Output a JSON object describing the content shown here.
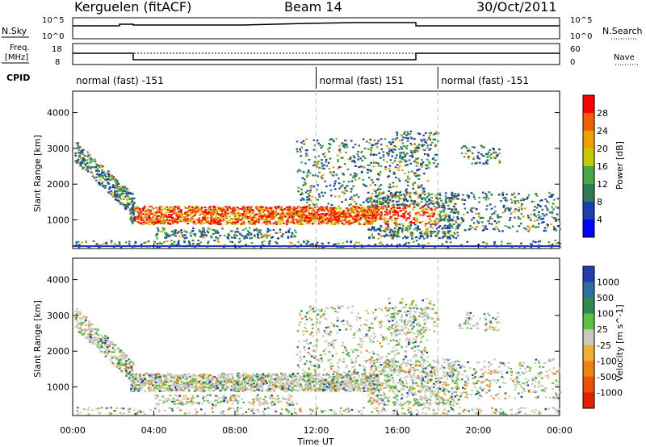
{
  "header": {
    "station": "Kerguelen (fitACF)",
    "beam": "Beam 14",
    "date": "30/Oct/2011"
  },
  "labels": {
    "nsky": "N.Sky",
    "freq_line1": "Freq.",
    "freq_line2": "[MHz]",
    "cpid": "CPID",
    "nsearch": "N.Search",
    "nave": "Nave",
    "nsky_tick_top": "10^5",
    "nsky_tick_bottom": "10^0",
    "nsearch_tick_top": "10^5",
    "nsearch_tick_bottom": "10^0",
    "freq_tick_top": "18",
    "freq_tick_bottom": "8",
    "nave_tick_top": "60",
    "nave_tick_bottom": "0"
  },
  "cpid_segments": [
    {
      "label": "normal (fast) -151",
      "start_hour": 0
    },
    {
      "label": "normal (fast) 151",
      "start_hour": 12
    },
    {
      "label": "normal (fast) -151",
      "start_hour": 18
    }
  ],
  "chart_data": [
    {
      "type": "heatmap",
      "name": "power",
      "ylabel": "Slant Range [km]",
      "xlabel": "Time UT",
      "x_tick_labels": [
        "00:00",
        "04:00",
        "08:00",
        "12:00",
        "16:00",
        "20:00",
        "00:00"
      ],
      "x_ticks_hours": [
        0,
        4,
        8,
        12,
        16,
        20,
        24
      ],
      "xlim_hours": [
        0,
        24
      ],
      "ylim": [
        200,
        4600
      ],
      "y_ticks": [
        1000,
        2000,
        3000,
        4000
      ],
      "colorbar": {
        "label": "Power [dB]",
        "ticks": [
          "4",
          "8",
          "12",
          "16",
          "20",
          "24",
          "28"
        ],
        "colors": [
          "#0000ff",
          "#1a3fb3",
          "#2f7a4f",
          "#45a845",
          "#c8c800",
          "#f0a000",
          "#f06000",
          "#ff0000"
        ]
      }
    },
    {
      "type": "heatmap",
      "name": "velocity",
      "ylabel": "Slant Range [km]",
      "xlabel": "Time UT",
      "x_tick_labels": [
        "00:00",
        "04:00",
        "08:00",
        "12:00",
        "16:00",
        "20:00",
        "00:00"
      ],
      "x_ticks_hours": [
        0,
        4,
        8,
        12,
        16,
        20,
        24
      ],
      "xlim_hours": [
        0,
        24
      ],
      "ylim": [
        200,
        4600
      ],
      "y_ticks": [
        1000,
        2000,
        3000,
        4000
      ],
      "colorbar": {
        "label": "Velocity [m s^-1]",
        "ticks": [
          "1000",
          "500",
          "100",
          "25",
          "-25",
          "-100",
          "-500",
          "-1000"
        ],
        "colors": [
          "#1f3fb0",
          "#2f6fa0",
          "#2f8a4f",
          "#5cc040",
          "#c8c8c0",
          "#f0b030",
          "#f08010",
          "#f05000",
          "#e02000"
        ]
      }
    }
  ],
  "axis": {
    "xlabel": "Time UT",
    "ylabel_power": "Slant Range [km]",
    "ylabel_velocity": "Slant Range [km]"
  },
  "colors": {
    "gray_scatter": "#c8c8c0",
    "frame": "#000000"
  }
}
